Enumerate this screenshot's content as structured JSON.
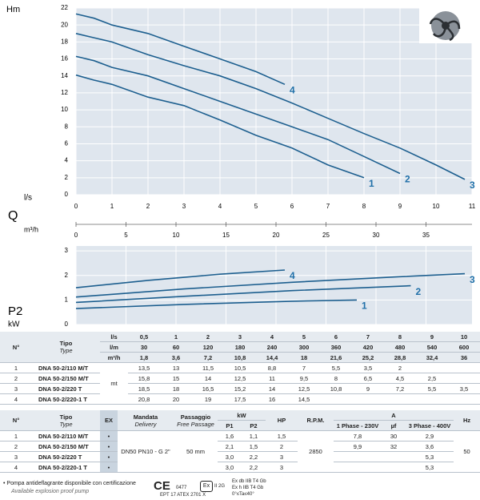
{
  "chart_data": [
    {
      "type": "line",
      "ylabel": "Hm",
      "xlabel": "l/s",
      "xlim": [
        0,
        11
      ],
      "xticks": [
        0,
        1,
        2,
        3,
        4,
        5,
        6,
        7,
        8,
        9,
        10,
        11
      ],
      "ylim": [
        0,
        22
      ],
      "yticks": [
        0,
        2,
        4,
        6,
        8,
        10,
        12,
        14,
        16,
        18,
        20,
        22
      ],
      "grid": true,
      "series": [
        {
          "name": "1",
          "color": "#1d5f8f",
          "x": [
            0,
            0.5,
            1,
            2,
            3,
            4,
            5,
            6,
            7,
            8
          ],
          "values": [
            14.1,
            13.5,
            13,
            11.5,
            10.5,
            8.8,
            7,
            5.5,
            3.5,
            2
          ]
        },
        {
          "name": "2",
          "color": "#1d5f8f",
          "x": [
            0,
            0.5,
            1,
            2,
            3,
            4,
            5,
            6,
            7,
            8,
            9
          ],
          "values": [
            16.3,
            15.8,
            15,
            14,
            12.5,
            11,
            9.5,
            8,
            6.5,
            4.5,
            2.5
          ]
        },
        {
          "name": "3",
          "color": "#1d5f8f",
          "x": [
            0,
            0.5,
            1,
            2,
            3,
            4,
            5,
            6,
            7,
            8,
            9,
            10,
            10.8
          ],
          "values": [
            19,
            18.5,
            18,
            16.5,
            15.2,
            14,
            12.5,
            10.8,
            9,
            7.2,
            5.5,
            3.5,
            1.8
          ]
        },
        {
          "name": "4",
          "color": "#1d5f8f",
          "x": [
            0,
            0.5,
            1,
            2,
            3,
            4,
            5,
            5.8
          ],
          "values": [
            21.3,
            20.8,
            20,
            19,
            17.5,
            16,
            14.5,
            13
          ]
        }
      ]
    },
    {
      "type": "line",
      "ylabel": "P2",
      "yunit": "kW",
      "x2_title": "Q",
      "x2label": "m³/h",
      "xlim": [
        0,
        11
      ],
      "x2lim": [
        0,
        39.6
      ],
      "x2ticks": [
        0,
        5,
        10,
        15,
        20,
        25,
        30,
        35
      ],
      "ylim": [
        0,
        3.2
      ],
      "yticks": [
        0,
        1,
        2,
        3
      ],
      "grid": true,
      "series": [
        {
          "name": "1",
          "color": "#1d5f8f",
          "x": [
            0,
            3,
            6,
            7.8
          ],
          "values": [
            0.65,
            0.82,
            0.95,
            1.0
          ]
        },
        {
          "name": "2",
          "color": "#1d5f8f",
          "x": [
            0,
            3,
            6,
            9.3
          ],
          "values": [
            0.9,
            1.15,
            1.38,
            1.58
          ]
        },
        {
          "name": "3",
          "color": "#1d5f8f",
          "x": [
            0,
            3,
            6,
            9,
            10.8
          ],
          "values": [
            1.12,
            1.45,
            1.72,
            1.95,
            2.07
          ]
        },
        {
          "name": "4",
          "color": "#1d5f8f",
          "x": [
            0,
            2,
            4,
            5.8
          ],
          "values": [
            1.5,
            1.8,
            2.05,
            2.22
          ]
        }
      ]
    }
  ],
  "table1": {
    "header": {
      "no": "N°",
      "tipo": "Tipo",
      "type": "Type"
    },
    "flow_units": [
      "l/s",
      "l/m",
      "m³/h"
    ],
    "flow": [
      [
        "0,5",
        "1",
        "2",
        "3",
        "4",
        "5",
        "6",
        "7",
        "8",
        "9",
        "10"
      ],
      [
        "30",
        "60",
        "120",
        "180",
        "240",
        "300",
        "360",
        "420",
        "480",
        "540",
        "600"
      ],
      [
        "1,8",
        "3,6",
        "7,2",
        "10,8",
        "14,4",
        "18",
        "21,6",
        "25,2",
        "28,8",
        "32,4",
        "36"
      ]
    ],
    "unit": "mt",
    "rows": [
      {
        "no": "1",
        "model": "DNA 50-2/110 M/T",
        "heads": [
          "13,5",
          "13",
          "11,5",
          "10,5",
          "8,8",
          "7",
          "5,5",
          "3,5",
          "2"
        ]
      },
      {
        "no": "2",
        "model": "DNA 50-2/150 M/T",
        "heads": [
          "15,8",
          "15",
          "14",
          "12,5",
          "11",
          "9,5",
          "8",
          "6,5",
          "4,5",
          "2,5"
        ]
      },
      {
        "no": "3",
        "model": "DNA 50-2/220 T",
        "heads": [
          "18,5",
          "18",
          "16,5",
          "15,2",
          "14",
          "12,5",
          "10,8",
          "9",
          "7,2",
          "5,5",
          "3,5"
        ]
      },
      {
        "no": "4",
        "model": "DNA 50-2/220-1 T",
        "heads": [
          "20,8",
          "20",
          "19",
          "17,5",
          "16",
          "14,5"
        ]
      }
    ]
  },
  "table2": {
    "header": {
      "no": "N°",
      "tipo": "Tipo",
      "type": "Type",
      "ex": "EX",
      "mandata": "Mandata",
      "delivery": "Delivery",
      "passaggio": "Passaggio",
      "free_passage": "Free Passage",
      "kw": "kW",
      "p1": "P1",
      "p2": "P2",
      "hp": "HP",
      "rpm": "R.P.M.",
      "rpm_unit": "1/min",
      "a": "A",
      "a1": "1 Phase - 230V",
      "uf": "µf",
      "a3": "3 Phase - 400V",
      "hz": "Hz"
    },
    "delivery": "DN50 PN10 - G 2\"",
    "passage": "50 mm",
    "rpm": "2850",
    "hz": "50",
    "rows": [
      {
        "no": "1",
        "model": "DNA 50-2/110 M/T",
        "ex": "•",
        "p1": "1,6",
        "p2": "1,1",
        "hp": "1,5",
        "a1": "7,8",
        "uf": "30",
        "a3": "2,9"
      },
      {
        "no": "2",
        "model": "DNA 50-2/150 M/T",
        "ex": "•",
        "p1": "2,1",
        "p2": "1,5",
        "hp": "2",
        "a1": "9,9",
        "uf": "32",
        "a3": "3,6"
      },
      {
        "no": "3",
        "model": "DNA 50-2/220 T",
        "ex": "•",
        "p1": "3,0",
        "p2": "2,2",
        "hp": "3",
        "a3": "5,3"
      },
      {
        "no": "4",
        "model": "DNA 50-2/220-1 T",
        "ex": "•",
        "p1": "3,0",
        "p2": "2,2",
        "hp": "3",
        "a3": "5,3"
      }
    ]
  },
  "footer": {
    "note": "• Pompa antideflagrante disponibile con certificazione",
    "note_en": "Available explosion proof pump",
    "ce": "CE",
    "notified_body": "0477",
    "certificate": "EPT 17 ATEX 2701 X",
    "ex_mark": "Ex",
    "group": "II 2G",
    "marking": [
      "Ex db IIB T4 Gb",
      "Ex h IIB T4 Gb",
      "0°≤Ta≤40°"
    ]
  }
}
